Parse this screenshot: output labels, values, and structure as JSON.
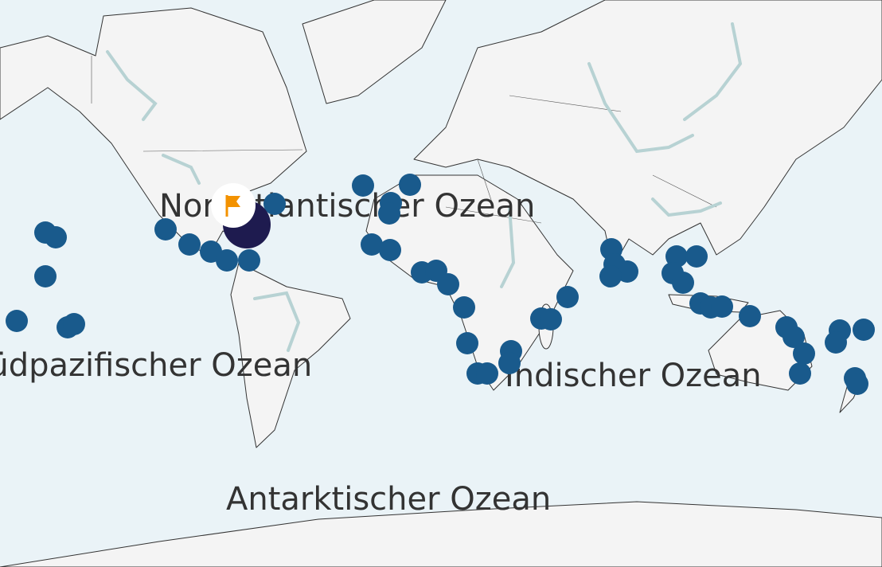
{
  "labels": {
    "north_atlantic": "Nordatlantischer Ozean",
    "south_pacific": "Südpazifischer Ozean",
    "indian": "Indischer Ozean",
    "antarctic": "Antarktischer Ozean"
  }
}
